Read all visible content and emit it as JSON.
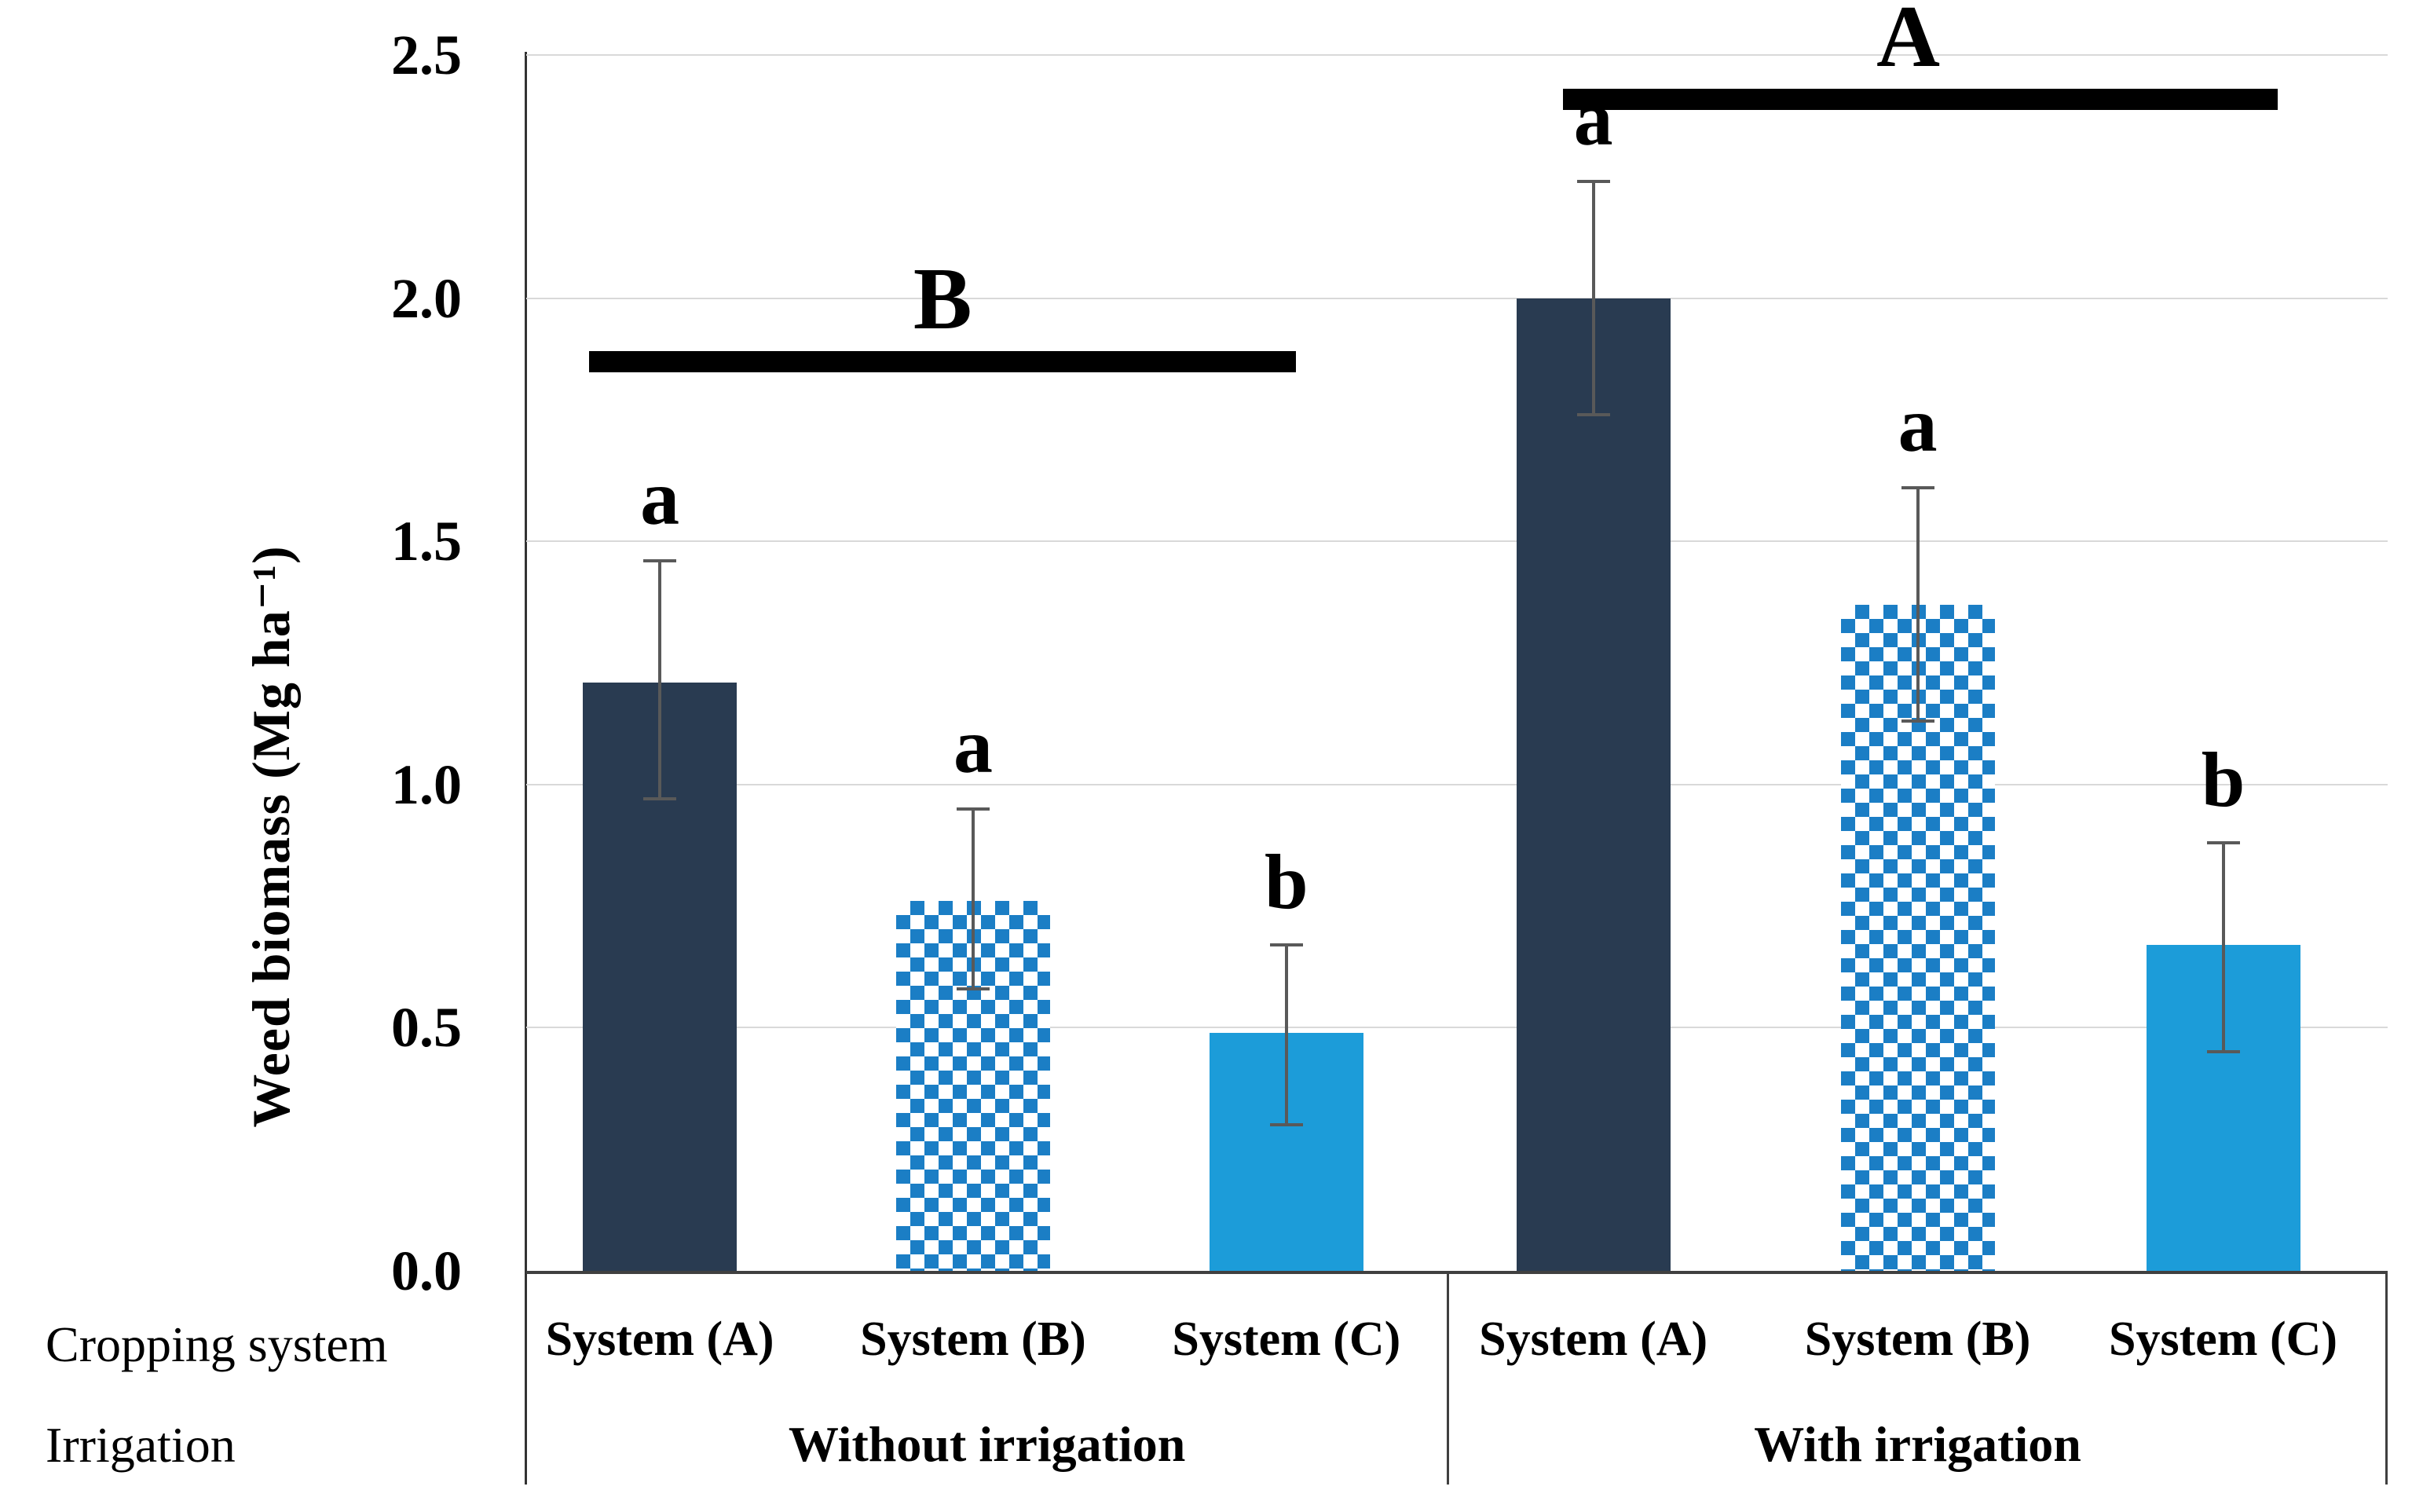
{
  "figure": {
    "y_axis_title": "Weed biomass (Mg ha⁻¹)",
    "row_headers": {
      "cropping_system": "Cropping system",
      "irrigation": "Irrigation"
    }
  },
  "chart_data": {
    "type": "bar",
    "title": "",
    "xlabel": "",
    "ylabel": "Weed biomass (Mg ha⁻¹)",
    "ylim": [
      0,
      2.5
    ],
    "grid": "horizontal gridlines on",
    "legend_position": "none",
    "yticks": [
      {
        "value": 0.0,
        "label": "0.0"
      },
      {
        "value": 0.5,
        "label": "0.5"
      },
      {
        "value": 1.0,
        "label": "1.0"
      },
      {
        "value": 1.5,
        "label": "1.5"
      },
      {
        "value": 2.0,
        "label": "2.0"
      },
      {
        "value": 2.5,
        "label": "2.5"
      }
    ],
    "groups": [
      {
        "label": "Without irrigation",
        "significance": {
          "letter": "B",
          "line_value": 1.87,
          "span_frac": [
            0.068,
            0.835
          ],
          "letter_x_frac": 0.452
        },
        "bars": [
          {
            "category": "System (A)",
            "value": 1.21,
            "err_low": 0.97,
            "err_high": 1.46,
            "letter": "a",
            "style": "solid-dark"
          },
          {
            "category": "System (B)",
            "value": 0.76,
            "err_low": 0.58,
            "err_high": 0.95,
            "letter": "a",
            "style": "checker"
          },
          {
            "category": "System (C)",
            "value": 0.49,
            "err_low": 0.3,
            "err_high": 0.67,
            "letter": "b",
            "style": "solid-light"
          }
        ]
      },
      {
        "label": "With irrigation",
        "significance": {
          "letter": "A",
          "line_value": 2.41,
          "span_frac": [
            0.123,
            0.883
          ],
          "letter_x_frac": 0.49
        },
        "bars": [
          {
            "category": "System (A)",
            "value": 2.0,
            "err_low": 1.76,
            "err_high": 2.24,
            "letter": "a",
            "style": "solid-dark"
          },
          {
            "category": "System (B)",
            "value": 1.37,
            "err_low": 1.13,
            "err_high": 1.61,
            "letter": "a",
            "style": "checker"
          },
          {
            "category": "System (C)",
            "value": 0.67,
            "err_low": 0.45,
            "err_high": 0.88,
            "letter": "b",
            "style": "solid-light"
          }
        ]
      }
    ],
    "colors": {
      "solid_dark": "#293B51",
      "checker_blue": "#1B7EC5",
      "solid_light": "#1C9CD9",
      "error_bar": "#595959",
      "gridline": "#D9D9D9",
      "axis": "#404040",
      "significance_bar": "#000000"
    }
  }
}
